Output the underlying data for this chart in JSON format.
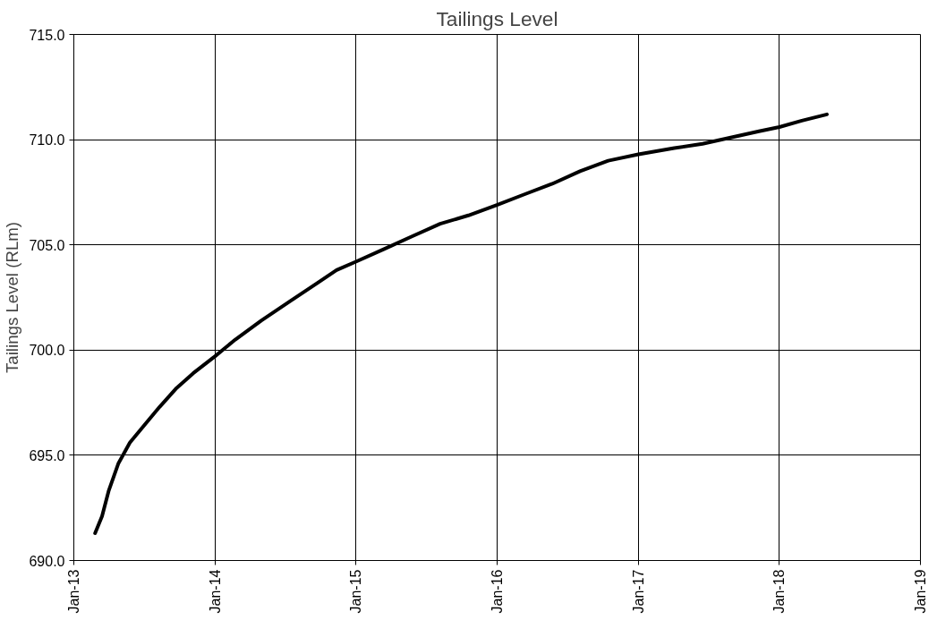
{
  "chart_data": {
    "type": "line",
    "title": "Tailings Level",
    "ylabel": "Tailings Level (RLm)",
    "x": [
      "2013-02-25",
      "2013-03-15",
      "2013-04-01",
      "2013-04-26",
      "2013-05-26",
      "2013-07-01",
      "2013-08-11",
      "2013-09-24",
      "2013-11-06",
      "2014-01-01",
      "2014-02-23",
      "2014-05-01",
      "2014-07-13",
      "2014-09-24",
      "2014-11-12",
      "2015-01-01",
      "2015-03-15",
      "2015-05-26",
      "2015-08-07",
      "2015-10-19",
      "2016-01-01",
      "2016-03-12",
      "2016-05-23",
      "2016-08-03",
      "2016-10-15",
      "2017-01-01",
      "2017-04-04",
      "2017-06-16",
      "2017-08-28",
      "2017-11-09",
      "2018-01-01",
      "2018-02-28",
      "2018-05-04"
    ],
    "series": [
      {
        "color": "#000000",
        "values": [
          691.3,
          692.1,
          693.3,
          694.6,
          695.6,
          696.4,
          697.3,
          698.2,
          698.9,
          699.7,
          700.5,
          701.4,
          702.3,
          703.2,
          703.8,
          704.2,
          704.8,
          705.4,
          706.0,
          706.4,
          706.9,
          707.4,
          707.9,
          708.5,
          709.0,
          709.3,
          709.6,
          709.8,
          710.1,
          710.4,
          710.6,
          710.9,
          711.2
        ]
      }
    ],
    "xlim": [
      "2013-01-01",
      "2019-01-01"
    ],
    "xticks": [
      {
        "value": "2013-01-01",
        "label": "Jan-13"
      },
      {
        "value": "2014-01-01",
        "label": "Jan-14"
      },
      {
        "value": "2015-01-01",
        "label": "Jan-15"
      },
      {
        "value": "2016-01-01",
        "label": "Jan-16"
      },
      {
        "value": "2017-01-01",
        "label": "Jan-17"
      },
      {
        "value": "2018-01-01",
        "label": "Jan-18"
      },
      {
        "value": "2019-01-01",
        "label": "Jan-19"
      }
    ],
    "ylim": [
      690,
      715
    ],
    "yticks": [
      {
        "value": 690,
        "label": "690.0"
      },
      {
        "value": 695,
        "label": "695.0"
      },
      {
        "value": 700,
        "label": "700.0"
      },
      {
        "value": 705,
        "label": "705.0"
      },
      {
        "value": 710,
        "label": "710.0"
      },
      {
        "value": 715,
        "label": "715.0"
      }
    ],
    "grid": true,
    "marker": "none",
    "line_style": "solid"
  }
}
